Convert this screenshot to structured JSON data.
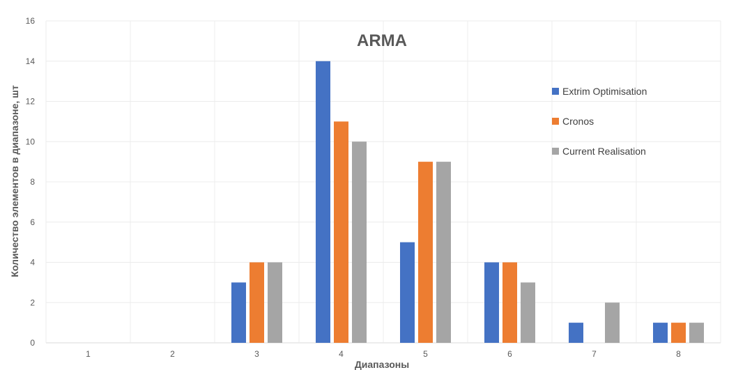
{
  "chart_data": {
    "type": "bar",
    "title": "ARMA",
    "xlabel": "Диапазоны",
    "ylabel": "Количество элементов в диапазоне, шт",
    "categories": [
      "1",
      "2",
      "3",
      "4",
      "5",
      "6",
      "7",
      "8"
    ],
    "yticks": [
      "0",
      "2",
      "4",
      "6",
      "8",
      "10",
      "12",
      "14",
      "16"
    ],
    "ylim": [
      0,
      16
    ],
    "grid": true,
    "legend_position": "right",
    "series": [
      {
        "name": "Extrim Optimisation",
        "color": "#4472C4",
        "values": [
          0,
          0,
          3,
          14,
          5,
          4,
          1,
          1
        ]
      },
      {
        "name": "Cronos",
        "color": "#ED7D31",
        "values": [
          0,
          0,
          4,
          11,
          9,
          4,
          0,
          1
        ]
      },
      {
        "name": "Current Realisation",
        "color": "#A5A5A5",
        "values": [
          0,
          0,
          4,
          10,
          9,
          3,
          2,
          1
        ]
      }
    ]
  }
}
